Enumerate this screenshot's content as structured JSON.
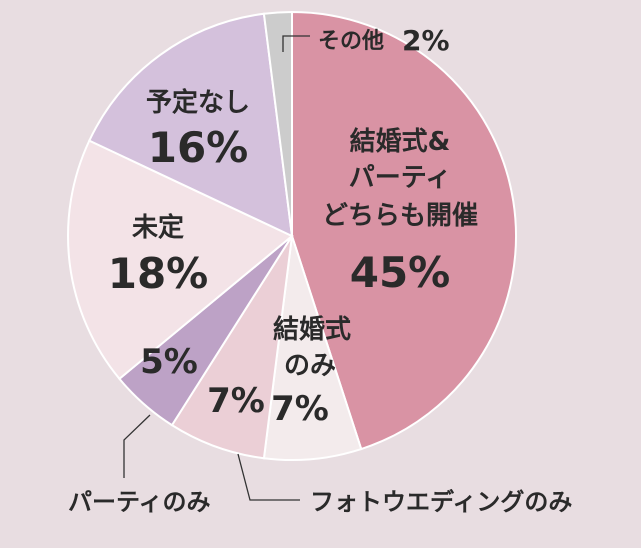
{
  "chart_data": {
    "type": "pie",
    "start": "top",
    "direction": "clockwise",
    "slices": [
      {
        "label": "結婚式&パーティどちらも開催",
        "value": 45,
        "value_label": "45%",
        "color": "#d993a4"
      },
      {
        "label": "結婚式のみ",
        "value": 7,
        "value_label": "7%",
        "color": "#f3ebec"
      },
      {
        "label": "フォトウエディングのみ",
        "value": 7,
        "value_label": "7%",
        "color": "#ebcfd6"
      },
      {
        "label": "パーティのみ",
        "value": 5,
        "value_label": "5%",
        "color": "#bda2c6"
      },
      {
        "label": "未定",
        "value": 18,
        "value_label": "18%",
        "color": "#f3e3e7"
      },
      {
        "label": "予定なし",
        "value": 16,
        "value_label": "16%",
        "color": "#d4c1dc"
      },
      {
        "label": "その他",
        "value": 2,
        "value_label": "2%",
        "color": "#cccccc"
      }
    ]
  },
  "labels": {
    "both_line1": "結婚式&",
    "both_line2": "パーティ",
    "both_line3": "どちらも開催",
    "both_pct": "45%",
    "ceremony_line1": "結婚式",
    "ceremony_line2": "のみ",
    "ceremony_pct": "7%",
    "photo_label": "フォトウエディングのみ",
    "photo_pct": "7%",
    "party_label": "パーティのみ",
    "party_pct": "5%",
    "undecided_label": "未定",
    "undecided_pct": "18%",
    "noplan_label": "予定なし",
    "noplan_pct": "16%",
    "other_label": "その他",
    "other_pct": "2%"
  }
}
